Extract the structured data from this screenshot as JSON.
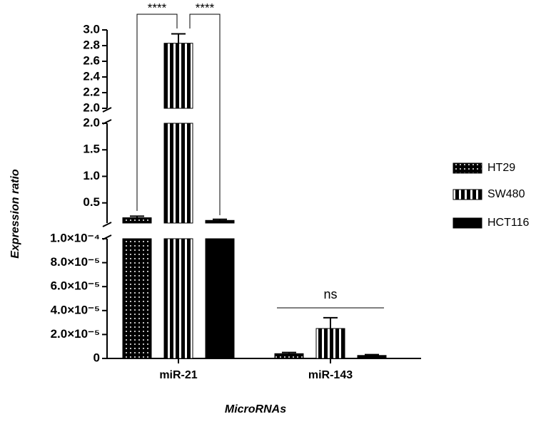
{
  "chart_data": {
    "type": "bar",
    "y_label": "Expression ratio",
    "x_label": "MicroRNAs",
    "categories": [
      "miR-21",
      "miR-143"
    ],
    "y_segments": [
      {
        "ylim": [
          0,
          0.0001
        ],
        "yticks": [
          0,
          {
            "value": 2e-05,
            "label": "2.0×10⁻⁵"
          },
          {
            "value": 4e-05,
            "label": "4.0×10⁻⁵"
          },
          {
            "value": 6e-05,
            "label": "6.0×10⁻⁵"
          },
          {
            "value": 8e-05,
            "label": "8.0×10⁻⁵"
          },
          {
            "value": 0.0001,
            "label": "1.0×10⁻⁴"
          }
        ]
      },
      {
        "ylim": [
          0.12,
          2.0
        ],
        "yticks": [
          0.5,
          {
            "value": 1,
            "label": "1.0"
          },
          1.5,
          {
            "value": 2,
            "label": "2.0"
          }
        ]
      },
      {
        "ylim": [
          2.0,
          3.0
        ],
        "yticks": [
          {
            "value": 2,
            "label": "2.0"
          },
          2.2,
          2.4,
          2.6,
          2.8,
          {
            "value": 3,
            "label": "3.0"
          }
        ]
      }
    ],
    "series": [
      {
        "name": "HT29",
        "pattern": "dots",
        "values": [
          0.22,
          4e-06
        ],
        "errors": [
          0.03,
          1e-06
        ]
      },
      {
        "name": "SW480",
        "pattern": "stripes",
        "values": [
          2.83,
          2.5e-05
        ],
        "errors": [
          0.12,
          9e-06
        ]
      },
      {
        "name": "HCT116",
        "pattern": "solid",
        "values": [
          0.17,
          2.5e-06
        ],
        "errors": [
          0.02,
          7e-07
        ]
      }
    ],
    "annotations": [
      {
        "text": "****"
      },
      {
        "text": "****"
      },
      {
        "text": "ns"
      }
    ]
  }
}
